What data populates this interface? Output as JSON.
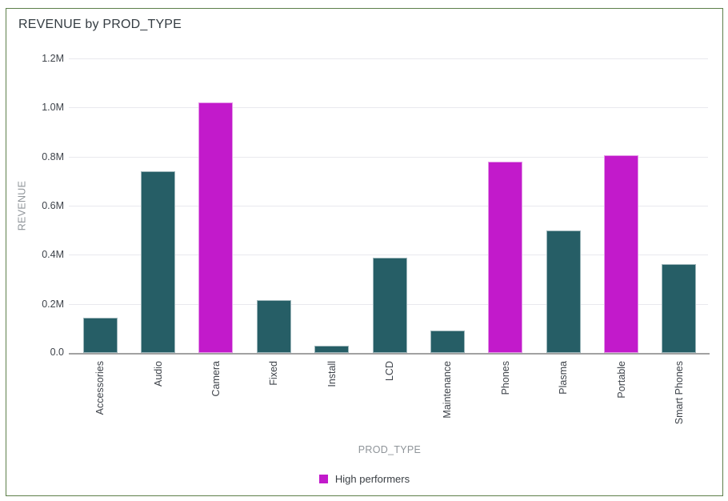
{
  "chart_data": {
    "type": "bar",
    "title": "REVENUE by PROD_TYPE",
    "xlabel": "PROD_TYPE",
    "ylabel": "REVENUE",
    "ylim": [
      0,
      1200000
    ],
    "grid": true,
    "yticks": [
      {
        "value": 0,
        "label": "0.0"
      },
      {
        "value": 200000,
        "label": "0.2M"
      },
      {
        "value": 400000,
        "label": "0.4M"
      },
      {
        "value": 600000,
        "label": "0.6M"
      },
      {
        "value": 800000,
        "label": "0.8M"
      },
      {
        "value": 1000000,
        "label": "1.0M"
      },
      {
        "value": 1200000,
        "label": "1.2M"
      }
    ],
    "categories": [
      "Accessories",
      "Audio",
      "Camera",
      "Fixed",
      "Install",
      "LCD",
      "Maintenance",
      "Phones",
      "Plasma",
      "Portable",
      "Smart Phones"
    ],
    "values": [
      145000,
      740000,
      1020000,
      215000,
      30000,
      388000,
      90000,
      778000,
      500000,
      805000,
      362000
    ],
    "high_performers": [
      "Camera",
      "Phones",
      "Portable"
    ],
    "colors": {
      "bar": "#265e66",
      "highlight": "#c21acb"
    },
    "legend": {
      "position": "bottom",
      "items": [
        {
          "label": "High performers",
          "color": "#c21acb"
        }
      ]
    }
  }
}
